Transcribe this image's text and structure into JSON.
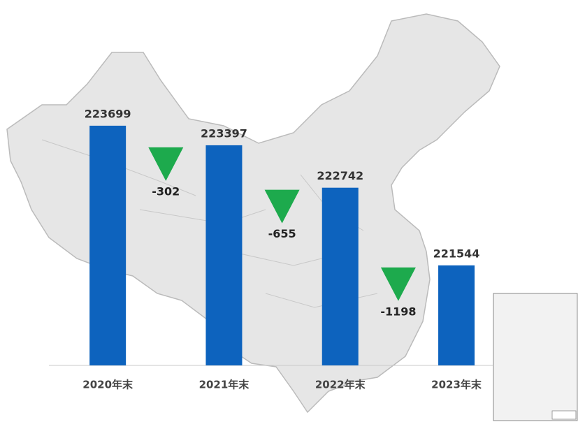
{
  "chart_data": {
    "type": "bar",
    "categories": [
      "2020年末",
      "2021年末",
      "2022年末",
      "2023年末"
    ],
    "values": [
      223699,
      223397,
      222742,
      221544
    ],
    "color": "#0d63be",
    "changes": [
      -302,
      -655,
      -1198
    ],
    "change_color": "#1daa4d",
    "ylim": [
      220000,
      224000
    ]
  }
}
